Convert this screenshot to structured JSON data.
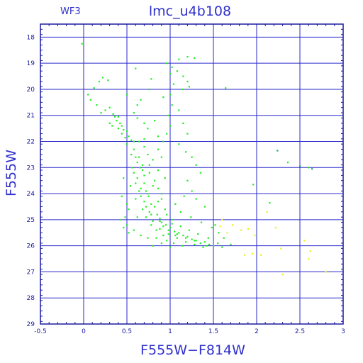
{
  "chart_data": {
    "type": "scatter",
    "title": "lmc_u4b108",
    "panel_label": "WF3",
    "xlabel": "F555W−F814W",
    "ylabel": "F555W",
    "xlim": [
      -0.5,
      3.0
    ],
    "ylim": [
      29,
      17.5
    ],
    "y_inverted": true,
    "grid": true,
    "x_ticks": [
      "-0.5",
      "0",
      "0.5",
      "1",
      "1.5",
      "2",
      "2.5",
      "3"
    ],
    "y_ticks": [
      "18",
      "19",
      "20",
      "21",
      "22",
      "23",
      "24",
      "25",
      "26",
      "27",
      "28",
      "29"
    ],
    "colors": {
      "axes": "#1a1aa0",
      "grid": "#2a2acc",
      "text": "#3030cc",
      "main_stars": "#22ee22",
      "faint_stars": "#eeee22",
      "odd_stars": "#22aa88"
    },
    "series": [
      {
        "color_key": "main_stars",
        "points": [
          [
            -0.02,
            18.25
          ],
          [
            0.12,
            19.95
          ],
          [
            0.18,
            19.7
          ],
          [
            0.22,
            19.55
          ],
          [
            0.28,
            19.65
          ],
          [
            0.05,
            20.2
          ],
          [
            0.08,
            20.4
          ],
          [
            0.15,
            20.6
          ],
          [
            0.2,
            20.9
          ],
          [
            0.25,
            20.8
          ],
          [
            0.3,
            20.7
          ],
          [
            0.34,
            20.95
          ],
          [
            0.38,
            21.2
          ],
          [
            0.33,
            21.4
          ],
          [
            0.4,
            21.5
          ],
          [
            0.44,
            21.7
          ],
          [
            0.48,
            21.85
          ],
          [
            0.5,
            22.1
          ],
          [
            0.42,
            21.3
          ],
          [
            0.46,
            21.55
          ],
          [
            0.36,
            21.05
          ],
          [
            0.3,
            21.3
          ],
          [
            0.4,
            21.05
          ],
          [
            0.5,
            21.6
          ],
          [
            0.55,
            21.95
          ],
          [
            0.58,
            22.3
          ],
          [
            0.6,
            22.6
          ],
          [
            0.55,
            22.5
          ],
          [
            0.62,
            22.8
          ],
          [
            0.65,
            23.0
          ],
          [
            0.58,
            23.2
          ],
          [
            0.68,
            23.1
          ],
          [
            0.62,
            23.4
          ],
          [
            0.7,
            23.6
          ],
          [
            0.66,
            23.8
          ],
          [
            0.72,
            23.9
          ],
          [
            0.75,
            24.1
          ],
          [
            0.7,
            24.3
          ],
          [
            0.78,
            24.4
          ],
          [
            0.82,
            24.5
          ],
          [
            0.76,
            24.7
          ],
          [
            0.85,
            24.8
          ],
          [
            0.88,
            24.95
          ],
          [
            0.8,
            25.05
          ],
          [
            0.9,
            25.1
          ],
          [
            0.95,
            25.2
          ],
          [
            0.88,
            25.35
          ],
          [
            1.0,
            25.3
          ],
          [
            1.05,
            25.45
          ],
          [
            0.98,
            25.55
          ],
          [
            1.1,
            25.5
          ],
          [
            1.15,
            25.6
          ],
          [
            1.08,
            25.7
          ],
          [
            1.2,
            25.65
          ],
          [
            1.25,
            25.75
          ],
          [
            1.18,
            25.85
          ],
          [
            1.3,
            25.8
          ],
          [
            1.35,
            25.9
          ],
          [
            1.28,
            25.95
          ],
          [
            1.4,
            25.85
          ],
          [
            1.45,
            25.95
          ],
          [
            1.5,
            26.0
          ],
          [
            1.55,
            25.9
          ],
          [
            1.6,
            26.05
          ],
          [
            1.38,
            26.05
          ],
          [
            0.64,
            22.0
          ],
          [
            0.7,
            22.2
          ],
          [
            0.74,
            22.5
          ],
          [
            0.8,
            22.7
          ],
          [
            0.68,
            22.9
          ],
          [
            0.76,
            23.2
          ],
          [
            0.82,
            23.5
          ],
          [
            0.6,
            23.6
          ],
          [
            0.64,
            23.9
          ],
          [
            0.86,
            23.8
          ],
          [
            0.9,
            24.2
          ],
          [
            0.68,
            24.6
          ],
          [
            0.72,
            24.9
          ],
          [
            0.94,
            24.6
          ],
          [
            0.78,
            25.2
          ],
          [
            0.84,
            25.4
          ],
          [
            1.02,
            25.0
          ],
          [
            0.92,
            25.6
          ],
          [
            1.12,
            25.25
          ],
          [
            0.96,
            25.8
          ],
          [
            1.22,
            25.4
          ],
          [
            1.04,
            25.9
          ],
          [
            1.32,
            25.55
          ],
          [
            1.14,
            26.0
          ],
          [
            1.44,
            25.7
          ],
          [
            0.56,
            23.0
          ],
          [
            0.54,
            23.7
          ],
          [
            0.6,
            24.2
          ],
          [
            0.52,
            24.6
          ],
          [
            0.62,
            24.9
          ],
          [
            0.5,
            25.2
          ],
          [
            0.58,
            25.4
          ],
          [
            0.66,
            25.6
          ],
          [
            0.74,
            25.7
          ],
          [
            0.48,
            24.9
          ],
          [
            0.46,
            25.3
          ],
          [
            0.52,
            25.5
          ],
          [
            0.8,
            26.0
          ],
          [
            0.9,
            25.9
          ],
          [
            1.0,
            26.05
          ],
          [
            0.86,
            22.3
          ],
          [
            0.92,
            22.0
          ],
          [
            0.96,
            21.7
          ],
          [
            1.0,
            21.4
          ],
          [
            0.98,
            21.0
          ],
          [
            1.02,
            20.6
          ],
          [
            1.0,
            20.2
          ],
          [
            1.04,
            19.8
          ],
          [
            1.0,
            19.4
          ],
          [
            1.02,
            19.15
          ],
          [
            1.08,
            19.3
          ],
          [
            1.15,
            19.5
          ],
          [
            1.2,
            19.7
          ],
          [
            1.22,
            19.9
          ],
          [
            1.14,
            20.0
          ],
          [
            0.78,
            19.6
          ],
          [
            0.6,
            19.2
          ],
          [
            0.96,
            19.0
          ],
          [
            1.1,
            18.85
          ],
          [
            1.2,
            18.75
          ],
          [
            1.28,
            18.8
          ],
          [
            1.64,
            19.95
          ],
          [
            1.1,
            20.8
          ],
          [
            1.15,
            21.3
          ],
          [
            1.2,
            21.7
          ],
          [
            1.1,
            22.1
          ],
          [
            1.18,
            22.4
          ],
          [
            1.25,
            22.6
          ],
          [
            0.82,
            21.2
          ],
          [
            0.74,
            21.5
          ],
          [
            0.86,
            21.8
          ],
          [
            0.7,
            21.3
          ],
          [
            0.58,
            20.9
          ],
          [
            0.62,
            20.6
          ],
          [
            0.5,
            20.2
          ],
          [
            0.76,
            20.0
          ],
          [
            0.66,
            20.4
          ],
          [
            0.92,
            20.3
          ],
          [
            0.9,
            22.6
          ],
          [
            1.3,
            22.9
          ],
          [
            1.35,
            23.2
          ],
          [
            1.2,
            23.5
          ],
          [
            1.25,
            23.9
          ],
          [
            1.3,
            24.2
          ],
          [
            1.4,
            24.5
          ],
          [
            1.16,
            24.1
          ],
          [
            1.06,
            24.4
          ],
          [
            1.12,
            24.7
          ],
          [
            1.24,
            24.9
          ],
          [
            1.36,
            25.1
          ],
          [
            1.48,
            25.3
          ],
          [
            1.56,
            25.5
          ],
          [
            1.62,
            25.7
          ],
          [
            1.7,
            25.95
          ],
          [
            1.52,
            25.2
          ],
          [
            0.46,
            23.4
          ],
          [
            0.44,
            24.1
          ],
          [
            0.5,
            24.4
          ],
          [
            0.42,
            25.0
          ],
          [
            1.96,
            23.65
          ],
          [
            2.24,
            22.35
          ],
          [
            2.36,
            22.8
          ],
          [
            2.5,
            22.95
          ],
          [
            2.6,
            23.0
          ],
          [
            2.15,
            24.35
          ],
          [
            0.9,
            24.0
          ],
          [
            0.86,
            24.3
          ],
          [
            0.96,
            24.8
          ],
          [
            1.02,
            25.15
          ],
          [
            0.92,
            25.25
          ],
          [
            1.06,
            25.6
          ],
          [
            0.84,
            25.7
          ],
          [
            0.74,
            24.0
          ],
          [
            0.8,
            23.7
          ],
          [
            0.7,
            23.3
          ],
          [
            0.64,
            22.6
          ],
          [
            0.58,
            22.0
          ],
          [
            0.52,
            21.8
          ],
          [
            0.44,
            21.4
          ],
          [
            0.62,
            21.1
          ],
          [
            0.7,
            21.9
          ],
          [
            0.76,
            22.9
          ],
          [
            0.86,
            23.1
          ],
          [
            0.94,
            23.4
          ],
          [
            0.66,
            24.1
          ],
          [
            0.72,
            24.5
          ],
          [
            0.78,
            24.8
          ],
          [
            0.88,
            25.05
          ],
          [
            0.98,
            25.4
          ],
          [
            1.08,
            25.55
          ],
          [
            1.18,
            25.7
          ],
          [
            1.28,
            25.8
          ],
          [
            1.42,
            26.0
          ]
        ]
      },
      {
        "color_key": "faint_stars",
        "points": [
          [
            1.6,
            25.0
          ],
          [
            1.72,
            25.2
          ],
          [
            1.82,
            25.4
          ],
          [
            1.9,
            25.35
          ],
          [
            1.98,
            25.6
          ],
          [
            2.12,
            24.7
          ],
          [
            2.22,
            25.3
          ],
          [
            2.28,
            26.1
          ],
          [
            1.86,
            26.35
          ],
          [
            1.95,
            26.3
          ],
          [
            2.05,
            26.35
          ],
          [
            2.3,
            27.1
          ],
          [
            2.55,
            25.8
          ],
          [
            2.62,
            26.2
          ],
          [
            2.6,
            26.5
          ],
          [
            2.8,
            27.0
          ],
          [
            1.58,
            25.25
          ],
          [
            1.66,
            25.5
          ]
        ]
      },
      {
        "color_key": "odd_stars",
        "points": [
          [
            2.24,
            22.35
          ],
          [
            2.5,
            22.95
          ],
          [
            2.64,
            23.05
          ]
        ]
      }
    ]
  }
}
